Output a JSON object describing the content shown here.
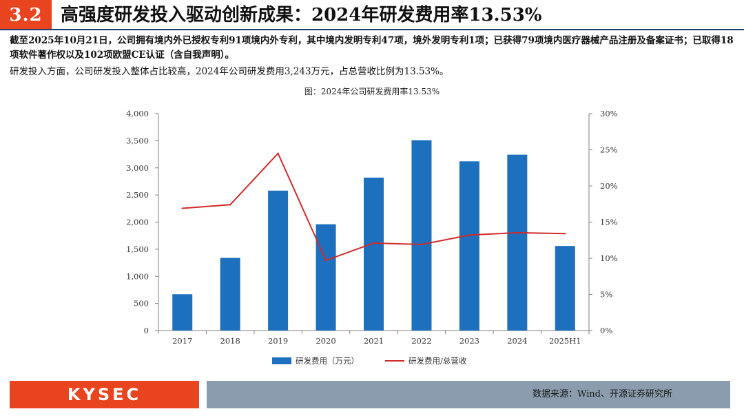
{
  "header": {
    "section_number": "3.2",
    "title": "高强度研发投入驱动创新成果：2024年研发费用率13.53%"
  },
  "body_text": {
    "paragraph_1": "截至2025年10月21日，公司拥有境内外已授权专利91项境内外专利，其中境内发明专利47项，境外发明专利1项；已获得79项境内医疗器械产品注册及备案证书；已取得18项软件著作权以及102项欧盟CE认证（含自我声明）。",
    "paragraph_2": "研发投入方面，公司研发投入整体占比较高，2024年公司研发费用3,243万元，占总营收比例为13.53%。"
  },
  "chart_data": {
    "type": "bar",
    "title": "图：2024年公司研发费用率13.53%",
    "categories": [
      "2017",
      "2018",
      "2019",
      "2020",
      "2021",
      "2022",
      "2023",
      "2024",
      "2025H1"
    ],
    "series": [
      {
        "name": "研发费用（万元）",
        "type": "bar",
        "axis": "left",
        "values": [
          670,
          1340,
          2580,
          1960,
          2820,
          3510,
          3120,
          3243,
          1560
        ],
        "color": "#1c70bd"
      },
      {
        "name": "研发费用/总营收",
        "type": "line",
        "axis": "right",
        "values": [
          16.9,
          17.4,
          24.5,
          9.7,
          12.1,
          11.9,
          13.2,
          13.53,
          13.4
        ],
        "color": "#d22a2a"
      }
    ],
    "left_axis": {
      "min": 0,
      "max": 4000,
      "step": 500,
      "tick_labels": [
        "0",
        "500",
        "1,000",
        "1,500",
        "2,000",
        "2,500",
        "3,000",
        "3,500",
        "4,000"
      ]
    },
    "right_axis": {
      "min": 0,
      "max": 30,
      "step": 5,
      "tick_labels": [
        "0%",
        "5%",
        "10%",
        "15%",
        "20%",
        "25%",
        "30%"
      ]
    },
    "legend_position": "bottom-center",
    "grid": false
  },
  "footer": {
    "logo": "KYSEC",
    "source": "数据来源：Wind、开源证券研究所"
  }
}
